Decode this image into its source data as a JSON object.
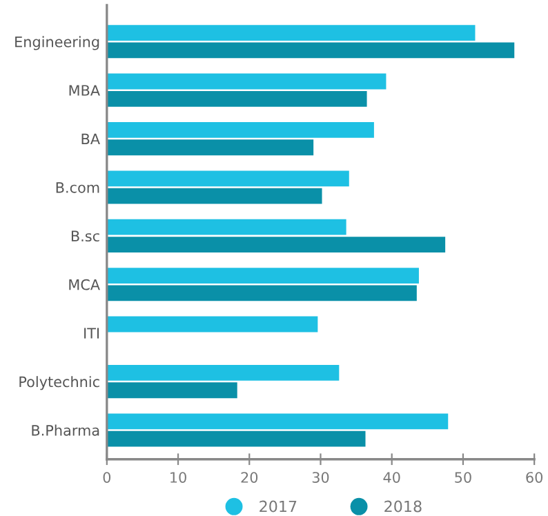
{
  "chart_data": {
    "type": "bar",
    "orientation": "horizontal",
    "categories": [
      "Engineering",
      "MBA",
      "BA",
      "B.com",
      "B.sc",
      "MCA",
      "ITI",
      "Polytechnic",
      "B.Pharma"
    ],
    "series": [
      {
        "name": "2017",
        "color": "#1ec0e3",
        "values": [
          51.7,
          39.2,
          37.5,
          34.0,
          33.6,
          43.8,
          29.6,
          32.6,
          47.9
        ]
      },
      {
        "name": "2018",
        "color": "#0a90a8",
        "values": [
          57.2,
          36.5,
          29.0,
          30.2,
          47.5,
          43.5,
          null,
          18.3,
          36.3
        ]
      }
    ],
    "xlim": [
      0,
      60
    ],
    "xticks": [
      0,
      10,
      20,
      30,
      40,
      50,
      60
    ],
    "grid": false,
    "legend": "bottom"
  }
}
